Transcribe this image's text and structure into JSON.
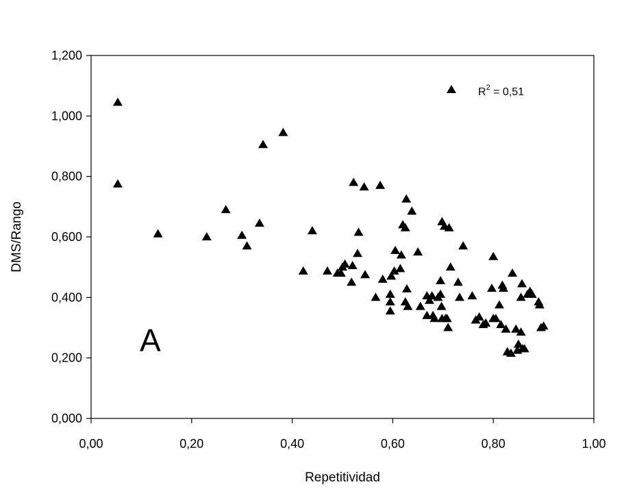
{
  "chart_data": {
    "type": "scatter",
    "xlabel": "Repetitividad",
    "ylabel": "DMS/Rango",
    "xlim": [
      0,
      1
    ],
    "ylim": [
      0,
      1.2
    ],
    "x_ticks": [
      "0,00",
      "0,20",
      "0,40",
      "0,60",
      "0,80",
      "1,00"
    ],
    "y_ticks": [
      "0,000",
      "0,200",
      "0,400",
      "0,600",
      "0,800",
      "1,000",
      "1,200"
    ],
    "panel_label": "A",
    "legend": {
      "label": "R",
      "superscript": "2",
      "value": " = 0,51",
      "placement": "top-right",
      "marker": "filled-triangle"
    },
    "marker_color": "#000000",
    "series": [
      {
        "points": [
          [
            0.053,
            1.045
          ],
          [
            0.053,
            0.775
          ],
          [
            0.133,
            0.61
          ],
          [
            0.23,
            0.6
          ],
          [
            0.268,
            0.69
          ],
          [
            0.3,
            0.605
          ],
          [
            0.31,
            0.57
          ],
          [
            0.335,
            0.645
          ],
          [
            0.342,
            0.905
          ],
          [
            0.382,
            0.945
          ],
          [
            0.422,
            0.487
          ],
          [
            0.44,
            0.62
          ],
          [
            0.47,
            0.487
          ],
          [
            0.49,
            0.48
          ],
          [
            0.497,
            0.48
          ],
          [
            0.5,
            0.5
          ],
          [
            0.505,
            0.51
          ],
          [
            0.518,
            0.45
          ],
          [
            0.52,
            0.505
          ],
          [
            0.522,
            0.78
          ],
          [
            0.53,
            0.545
          ],
          [
            0.532,
            0.615
          ],
          [
            0.543,
            0.765
          ],
          [
            0.545,
            0.475
          ],
          [
            0.566,
            0.4
          ],
          [
            0.575,
            0.77
          ],
          [
            0.58,
            0.46
          ],
          [
            0.595,
            0.41
          ],
          [
            0.595,
            0.385
          ],
          [
            0.595,
            0.355
          ],
          [
            0.597,
            0.47
          ],
          [
            0.603,
            0.487
          ],
          [
            0.605,
            0.555
          ],
          [
            0.615,
            0.495
          ],
          [
            0.617,
            0.54
          ],
          [
            0.62,
            0.64
          ],
          [
            0.625,
            0.63
          ],
          [
            0.625,
            0.385
          ],
          [
            0.627,
            0.725
          ],
          [
            0.628,
            0.428
          ],
          [
            0.63,
            0.37
          ],
          [
            0.638,
            0.685
          ],
          [
            0.65,
            0.55
          ],
          [
            0.655,
            0.37
          ],
          [
            0.668,
            0.405
          ],
          [
            0.668,
            0.34
          ],
          [
            0.673,
            0.39
          ],
          [
            0.678,
            0.405
          ],
          [
            0.68,
            0.34
          ],
          [
            0.683,
            0.33
          ],
          [
            0.69,
            0.4
          ],
          [
            0.695,
            0.455
          ],
          [
            0.695,
            0.41
          ],
          [
            0.697,
            0.37
          ],
          [
            0.698,
            0.65
          ],
          [
            0.698,
            0.33
          ],
          [
            0.703,
            0.635
          ],
          [
            0.705,
            0.33
          ],
          [
            0.708,
            0.33
          ],
          [
            0.71,
            0.3
          ],
          [
            0.712,
            0.63
          ],
          [
            0.715,
            0.5
          ],
          [
            0.73,
            0.45
          ],
          [
            0.733,
            0.4
          ],
          [
            0.74,
            0.57
          ],
          [
            0.758,
            0.405
          ],
          [
            0.765,
            0.325
          ],
          [
            0.772,
            0.335
          ],
          [
            0.78,
            0.31
          ],
          [
            0.785,
            0.315
          ],
          [
            0.797,
            0.43
          ],
          [
            0.8,
            0.535
          ],
          [
            0.8,
            0.33
          ],
          [
            0.805,
            0.33
          ],
          [
            0.812,
            0.375
          ],
          [
            0.815,
            0.31
          ],
          [
            0.818,
            0.44
          ],
          [
            0.82,
            0.43
          ],
          [
            0.825,
            0.295
          ],
          [
            0.828,
            0.22
          ],
          [
            0.835,
            0.215
          ],
          [
            0.838,
            0.48
          ],
          [
            0.845,
            0.295
          ],
          [
            0.848,
            0.225
          ],
          [
            0.85,
            0.245
          ],
          [
            0.855,
            0.285
          ],
          [
            0.855,
            0.4
          ],
          [
            0.857,
            0.445
          ],
          [
            0.858,
            0.23
          ],
          [
            0.862,
            0.23
          ],
          [
            0.868,
            0.41
          ],
          [
            0.873,
            0.42
          ],
          [
            0.877,
            0.41
          ],
          [
            0.89,
            0.385
          ],
          [
            0.892,
            0.375
          ],
          [
            0.895,
            0.3
          ],
          [
            0.9,
            0.305
          ]
        ]
      }
    ]
  }
}
